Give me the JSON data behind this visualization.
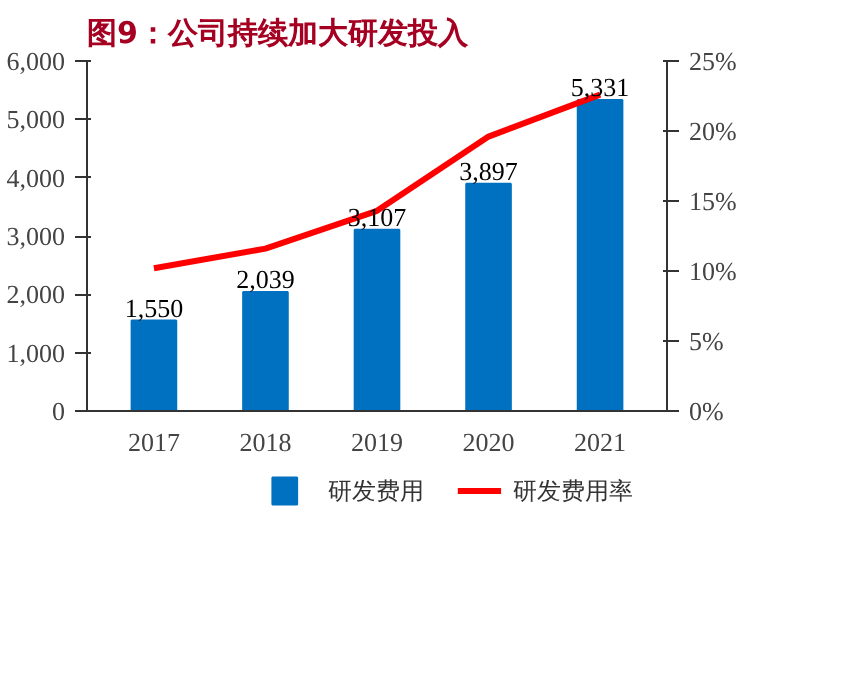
{
  "chart_data": {
    "type": "bar",
    "title": "图9：公司持续加大研发投入",
    "categories": [
      "2017",
      "2018",
      "2019",
      "2020",
      "2021"
    ],
    "series": [
      {
        "name": "研发费用",
        "color": "#0070c0",
        "values": [
          1550,
          2039,
          3107,
          3897,
          5331
        ],
        "value_labels": [
          "1,550",
          "2,039",
          "3,107",
          "3,897",
          "5,331"
        ]
      },
      {
        "name": "研发费用率",
        "type": "line",
        "axis": "y2",
        "color": "#ff0000",
        "values": [
          10.2,
          11.6,
          14.3,
          19.6,
          22.6
        ]
      }
    ],
    "ylim": [
      0,
      6000
    ],
    "yticks": [
      0,
      {
        "value": 1000,
        "label": "1,000"
      },
      {
        "value": 2000,
        "label": "2,000"
      },
      {
        "value": 3000,
        "label": "3,000"
      },
      {
        "value": 4000,
        "label": "4,000"
      },
      {
        "value": 5000,
        "label": "5,000"
      },
      {
        "value": 6000,
        "label": "6,000"
      }
    ],
    "y2lim": [
      0,
      25
    ],
    "y2ticks": [
      {
        "value": 0,
        "label": "0%"
      },
      {
        "value": 5,
        "label": "5%"
      },
      {
        "value": 10,
        "label": "10%"
      },
      {
        "value": 15,
        "label": "15%"
      },
      {
        "value": 20,
        "label": "20%"
      },
      {
        "value": 25,
        "label": "25%"
      }
    ],
    "legend": "bottom",
    "grid": false,
    "marker": "none"
  }
}
